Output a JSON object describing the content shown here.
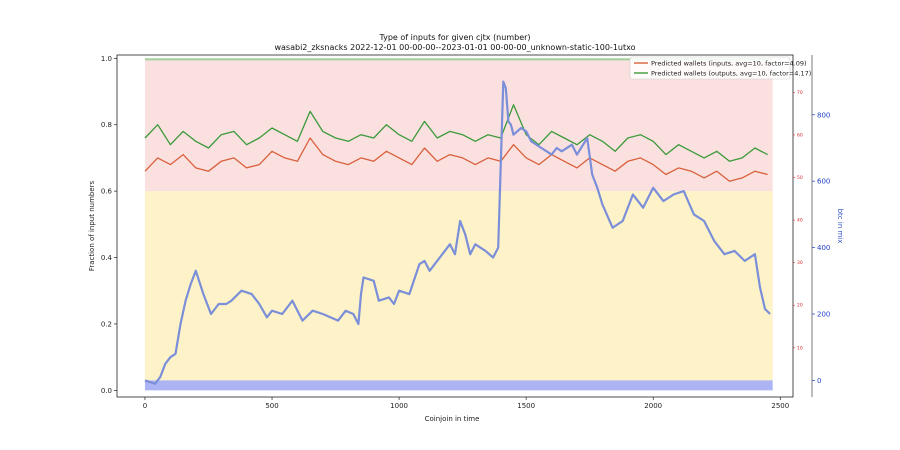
{
  "chart_data": {
    "type": "line",
    "title": "Type of inputs for given cjtx (number)",
    "subtitle": "wasabi2_zksnacks 2022-12-01 00-00-00--2023-01-01 00-00-00_unknown-static-100-1utxo",
    "xlabel": "Coinjoin in time",
    "ylabel": "Fraction of input numbers",
    "ylabel_right": "btc in mix",
    "xlim": [
      -110,
      2550
    ],
    "ylim": [
      -0.02,
      1.01
    ],
    "xticks": [
      "0",
      "500",
      "1000",
      "1500",
      "2000",
      "2500"
    ],
    "yticks": [
      "0.0",
      "0.2",
      "0.4",
      "0.6",
      "0.8",
      "1.0"
    ],
    "y2_ticks": [
      "10",
      "20",
      "30",
      "40",
      "50",
      "60",
      "70"
    ],
    "y3_ticks": [
      "0",
      "200",
      "400",
      "600",
      "800"
    ],
    "y3lim": [
      -50,
      980
    ],
    "legend_position": "top-right",
    "series": [
      {
        "name": "Predicted wallets (inputs, avg=10, factor=4.09)",
        "color": "#d9603b",
        "x": [
          0,
          50,
          100,
          150,
          200,
          250,
          300,
          350,
          400,
          450,
          500,
          550,
          600,
          650,
          700,
          750,
          800,
          850,
          900,
          950,
          1000,
          1050,
          1100,
          1150,
          1200,
          1250,
          1300,
          1350,
          1400,
          1450,
          1500,
          1550,
          1600,
          1650,
          1700,
          1750,
          1800,
          1850,
          1900,
          1950,
          2000,
          2050,
          2100,
          2150,
          2200,
          2250,
          2300,
          2350,
          2400,
          2450
        ],
        "values": [
          0.66,
          0.7,
          0.68,
          0.71,
          0.67,
          0.66,
          0.69,
          0.7,
          0.67,
          0.68,
          0.72,
          0.7,
          0.69,
          0.76,
          0.71,
          0.69,
          0.68,
          0.7,
          0.69,
          0.72,
          0.7,
          0.68,
          0.73,
          0.69,
          0.71,
          0.7,
          0.68,
          0.7,
          0.69,
          0.74,
          0.7,
          0.68,
          0.71,
          0.69,
          0.67,
          0.7,
          0.68,
          0.66,
          0.69,
          0.7,
          0.68,
          0.65,
          0.67,
          0.66,
          0.64,
          0.66,
          0.63,
          0.64,
          0.66,
          0.65
        ]
      },
      {
        "name": "Predicted wallets (outputs, avg=10, factor=4.17)",
        "color": "#3a9a3a",
        "x": [
          0,
          50,
          100,
          150,
          200,
          250,
          300,
          350,
          400,
          450,
          500,
          550,
          600,
          650,
          700,
          750,
          800,
          850,
          900,
          950,
          1000,
          1050,
          1100,
          1150,
          1200,
          1250,
          1300,
          1350,
          1400,
          1450,
          1500,
          1550,
          1600,
          1650,
          1700,
          1750,
          1800,
          1850,
          1900,
          1950,
          2000,
          2050,
          2100,
          2150,
          2200,
          2250,
          2300,
          2350,
          2400,
          2450
        ],
        "values": [
          0.76,
          0.8,
          0.74,
          0.78,
          0.75,
          0.73,
          0.77,
          0.78,
          0.74,
          0.76,
          0.79,
          0.77,
          0.75,
          0.84,
          0.78,
          0.76,
          0.75,
          0.77,
          0.76,
          0.8,
          0.77,
          0.75,
          0.81,
          0.76,
          0.78,
          0.77,
          0.75,
          0.77,
          0.76,
          0.86,
          0.77,
          0.74,
          0.78,
          0.76,
          0.74,
          0.77,
          0.75,
          0.72,
          0.76,
          0.77,
          0.75,
          0.71,
          0.74,
          0.72,
          0.7,
          0.72,
          0.69,
          0.7,
          0.73,
          0.71
        ]
      },
      {
        "name": "btc in mix",
        "color": "#7b8fd9",
        "axis": "right",
        "x": [
          0,
          40,
          60,
          80,
          100,
          120,
          140,
          160,
          180,
          200,
          230,
          260,
          290,
          320,
          340,
          380,
          420,
          450,
          480,
          500,
          540,
          580,
          620,
          660,
          700,
          760,
          790,
          820,
          840,
          850,
          860,
          900,
          920,
          960,
          980,
          1000,
          1040,
          1080,
          1100,
          1120,
          1140,
          1160,
          1200,
          1220,
          1240,
          1260,
          1280,
          1300,
          1340,
          1370,
          1390,
          1410,
          1420,
          1430,
          1440,
          1450,
          1480,
          1500,
          1520,
          1560,
          1600,
          1620,
          1640,
          1680,
          1700,
          1740,
          1760,
          1780,
          1800,
          1840,
          1880,
          1920,
          1960,
          2000,
          2040,
          2080,
          2120,
          2160,
          2200,
          2240,
          2280,
          2320,
          2360,
          2400,
          2420,
          2440,
          2460
        ],
        "values": [
          0,
          -10,
          10,
          50,
          70,
          80,
          170,
          240,
          290,
          330,
          260,
          200,
          230,
          230,
          240,
          270,
          260,
          230,
          190,
          210,
          200,
          240,
          180,
          210,
          200,
          180,
          210,
          200,
          170,
          260,
          310,
          300,
          240,
          250,
          230,
          270,
          260,
          350,
          360,
          330,
          350,
          370,
          410,
          380,
          480,
          440,
          380,
          410,
          390,
          370,
          400,
          900,
          880,
          780,
          770,
          740,
          760,
          750,
          720,
          700,
          680,
          700,
          690,
          710,
          680,
          730,
          620,
          580,
          530,
          460,
          480,
          560,
          520,
          580,
          540,
          560,
          570,
          500,
          480,
          420,
          380,
          390,
          360,
          380,
          280,
          215,
          200
        ]
      }
    ],
    "bands": {
      "blue_base": {
        "color": "#8a94f0",
        "level": 0.03
      },
      "yellow": {
        "color": "#fde79a",
        "level": 0.6
      },
      "pink": {
        "color": "#f7c6c6",
        "level": 1.0
      },
      "green_top": {
        "color": "#7ec87e",
        "level": 1.0
      }
    }
  }
}
